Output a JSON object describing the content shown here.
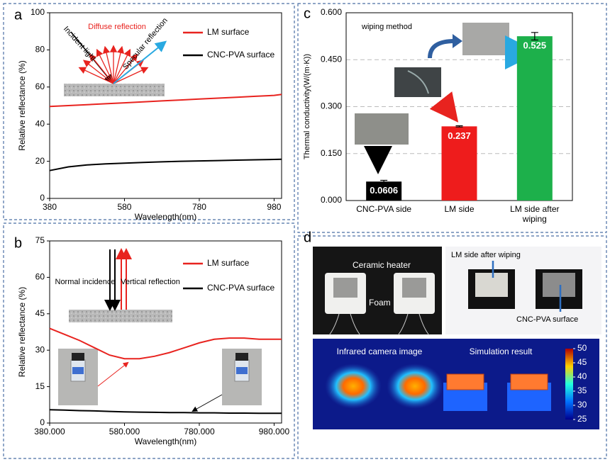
{
  "chart_data": [
    {
      "type": "line",
      "label": "a",
      "x": [
        380,
        430,
        480,
        530,
        580,
        630,
        680,
        730,
        780,
        830,
        880,
        930,
        980,
        1000
      ],
      "xlim": [
        380,
        1000
      ],
      "xticks": [
        380,
        580,
        780,
        980
      ],
      "ylim": [
        0,
        100
      ],
      "yticks": [
        0,
        20,
        40,
        60,
        80,
        100
      ],
      "xlabel": "Wavelength(nm)",
      "ylabel": "Relative reflectance (%)",
      "legend": "upper right",
      "series": [
        {
          "name": "LM surface",
          "color": "#e8231f",
          "values": [
            49.5,
            50,
            50.5,
            51,
            51.5,
            52,
            52.5,
            53,
            53.5,
            54,
            54.5,
            55,
            55.5,
            56
          ]
        },
        {
          "name": "CNC-PVA surface",
          "color": "#000000",
          "values": [
            15,
            17,
            18,
            18.6,
            19,
            19.4,
            19.7,
            20,
            20.2,
            20.4,
            20.6,
            20.8,
            21,
            21.1
          ]
        }
      ],
      "annotations": [
        "Incident light",
        "Diffuse reflection",
        "Specular reflection"
      ]
    },
    {
      "type": "line",
      "label": "b",
      "x": [
        380,
        420,
        460,
        500,
        540,
        580,
        620,
        660,
        700,
        740,
        780,
        820,
        860,
        900,
        940,
        980,
        1000
      ],
      "xlim": [
        380,
        1000
      ],
      "xticks": [
        {
          "value": 380,
          "label": "380.000"
        },
        {
          "value": 580,
          "label": "580.000"
        },
        {
          "value": 780,
          "label": "780.000"
        },
        {
          "value": 980,
          "label": "980.000"
        }
      ],
      "ylim": [
        0,
        75
      ],
      "yticks": [
        0,
        15,
        30,
        45,
        60,
        75
      ],
      "xlabel": "Wavelength(nm)",
      "ylabel": "Relative reflectance  (%)",
      "legend": "upper right",
      "series": [
        {
          "name": "LM surface",
          "color": "#e8231f",
          "values": [
            39,
            36.5,
            34,
            31,
            28,
            26.5,
            26.5,
            27.5,
            29,
            31,
            33,
            34.5,
            35,
            35,
            34.5,
            34.5,
            34.5
          ]
        },
        {
          "name": "CNC-PVA surface",
          "color": "#000000",
          "values": [
            5.5,
            5.3,
            5.1,
            5,
            4.8,
            4.6,
            4.5,
            4.4,
            4.3,
            4.3,
            4.2,
            4.2,
            4.1,
            4.1,
            4,
            4,
            4
          ]
        }
      ],
      "annotations": [
        "Normal incidence",
        "Vertical reflection"
      ]
    },
    {
      "type": "bar",
      "label": "c",
      "categories": [
        "CNC-PVA side",
        "LM side",
        "LM side after wiping"
      ],
      "values": [
        0.0606,
        0.237,
        0.525
      ],
      "errors": [
        0.004,
        0.002,
        0.012
      ],
      "colors": [
        "#000000",
        "#ee1c1c",
        "#1db04b"
      ],
      "ylim": [
        0,
        0.6
      ],
      "yticks": [
        {
          "value": 0,
          "label": "0.000"
        },
        {
          "value": 0.15,
          "label": "0.150"
        },
        {
          "value": 0.3,
          "label": "0.300"
        },
        {
          "value": 0.45,
          "label": "0.450"
        },
        {
          "value": 0.6,
          "label": "0.600"
        }
      ],
      "grid": true,
      "ylabel": "Thermal conductivity(W/(m·K))",
      "annotations": [
        "wiping method"
      ]
    }
  ],
  "panel_d": {
    "label": "d",
    "labels": [
      "Ceramic heater",
      "Foam",
      "LM side after wiping",
      "CNC-PVA surface",
      "Infrared camera image",
      "Simulation result"
    ],
    "colorbar_ticks": [
      25,
      30,
      35,
      40,
      45,
      50
    ]
  }
}
